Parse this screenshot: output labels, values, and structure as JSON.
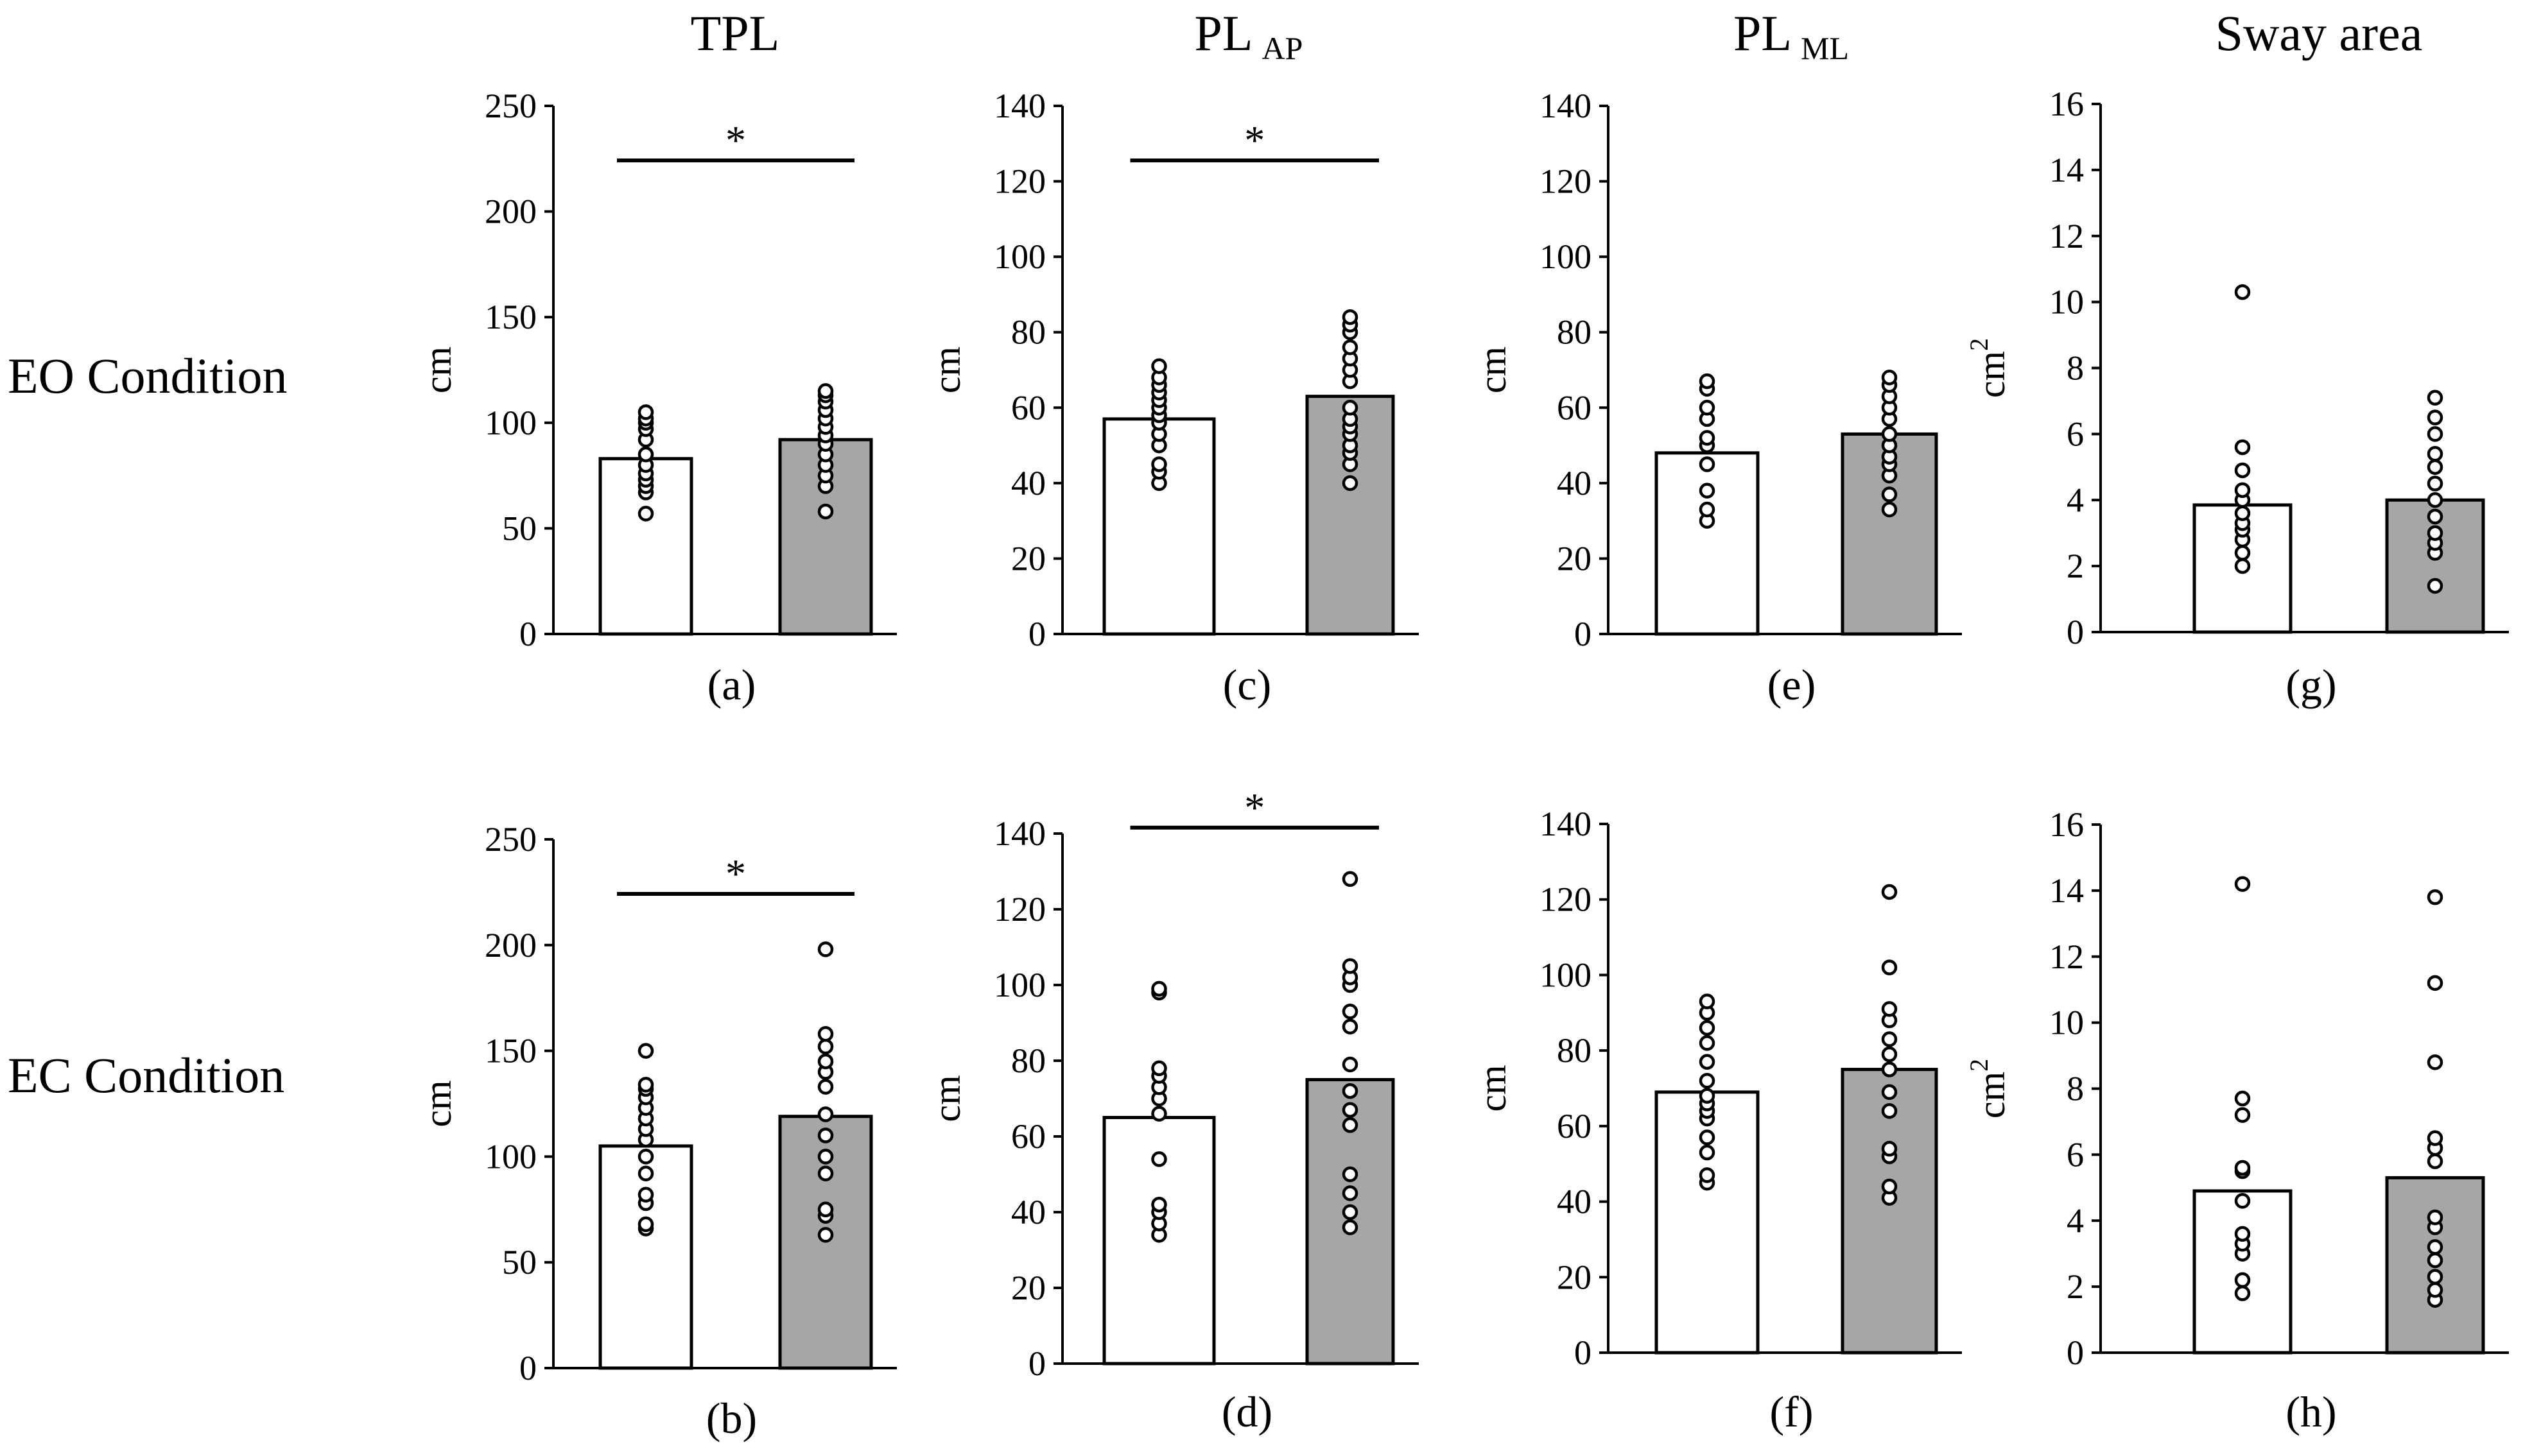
{
  "figure": {
    "column_titles": [
      {
        "main": "TPL",
        "sub": ""
      },
      {
        "main": "PL",
        "sub": "AP"
      },
      {
        "main": "PL",
        "sub": "ML"
      },
      {
        "main": "Sway area",
        "sub": ""
      }
    ],
    "row_labels": [
      "EO Condition",
      "EC Condition"
    ],
    "colors": {
      "bar_white": "#ffffff",
      "bar_gray": "#a6a6a6",
      "ink": "#000000"
    }
  },
  "chart_data": [
    {
      "type": "bar",
      "panel": "(a)",
      "row": 0,
      "col": 0,
      "ylabel": "cm",
      "ylabel_sup": "",
      "ylim": [
        0,
        250
      ],
      "yticks": [
        0,
        50,
        100,
        150,
        200,
        250
      ],
      "categories": [
        "",
        ""
      ],
      "means": [
        83,
        92
      ],
      "significance": "*",
      "points": [
        [
          57,
          67,
          70,
          73,
          76,
          80,
          85,
          92,
          97,
          100,
          102,
          105
        ],
        [
          58,
          70,
          75,
          80,
          85,
          90,
          94,
          98,
          102,
          106,
          110,
          113,
          115
        ]
      ]
    },
    {
      "type": "bar",
      "panel": "(b)",
      "row": 1,
      "col": 0,
      "ylabel": "cm",
      "ylabel_sup": "",
      "ylim": [
        0,
        250
      ],
      "yticks": [
        0,
        50,
        100,
        150,
        200,
        250
      ],
      "categories": [
        "",
        ""
      ],
      "means": [
        105,
        119
      ],
      "significance": "*",
      "points": [
        [
          66,
          68,
          78,
          82,
          92,
          100,
          108,
          113,
          118,
          123,
          128,
          132,
          134,
          150
        ],
        [
          63,
          72,
          75,
          92,
          100,
          110,
          120,
          133,
          140,
          145,
          152,
          158,
          198
        ]
      ]
    },
    {
      "type": "bar",
      "panel": "(c)",
      "row": 0,
      "col": 1,
      "ylabel": "cm",
      "ylabel_sup": "",
      "ylim": [
        0,
        140
      ],
      "yticks": [
        0,
        20,
        40,
        60,
        80,
        100,
        120,
        140
      ],
      "categories": [
        "",
        ""
      ],
      "means": [
        57,
        63
      ],
      "significance": "*",
      "points": [
        [
          40,
          43,
          45,
          50,
          53,
          56,
          58,
          60,
          62,
          64,
          66,
          68,
          71
        ],
        [
          40,
          45,
          48,
          50,
          53,
          55,
          57,
          60,
          67,
          70,
          73,
          76,
          80,
          82,
          84
        ]
      ]
    },
    {
      "type": "bar",
      "panel": "(d)",
      "row": 1,
      "col": 1,
      "ylabel": "cm",
      "ylabel_sup": "",
      "ylim": [
        0,
        140
      ],
      "yticks": [
        0,
        20,
        40,
        60,
        80,
        100,
        120,
        140
      ],
      "categories": [
        "",
        ""
      ],
      "means": [
        65,
        75
      ],
      "significance": "*",
      "points": [
        [
          34,
          37,
          40,
          42,
          54,
          66,
          70,
          73,
          76,
          78,
          98,
          99
        ],
        [
          36,
          40,
          45,
          50,
          63,
          67,
          72,
          79,
          89,
          93,
          100,
          102,
          105,
          128
        ]
      ]
    },
    {
      "type": "bar",
      "panel": "(e)",
      "row": 0,
      "col": 2,
      "ylabel": "cm",
      "ylabel_sup": "",
      "ylim": [
        0,
        140
      ],
      "yticks": [
        0,
        20,
        40,
        60,
        80,
        100,
        120,
        140
      ],
      "categories": [
        "",
        ""
      ],
      "means": [
        48,
        53
      ],
      "significance": "",
      "points": [
        [
          30,
          33,
          38,
          45,
          50,
          52,
          57,
          60,
          65,
          67
        ],
        [
          33,
          37,
          42,
          45,
          47,
          50,
          53,
          57,
          60,
          63,
          66,
          68
        ]
      ]
    },
    {
      "type": "bar",
      "panel": "(f)",
      "row": 1,
      "col": 2,
      "ylabel": "cm",
      "ylabel_sup": "",
      "ylim": [
        0,
        140
      ],
      "yticks": [
        0,
        20,
        40,
        60,
        80,
        100,
        120,
        140
      ],
      "categories": [
        "",
        ""
      ],
      "means": [
        69,
        75
      ],
      "significance": "",
      "points": [
        [
          45,
          47,
          53,
          57,
          62,
          64,
          66,
          68,
          72,
          77,
          82,
          86,
          90,
          93
        ],
        [
          41,
          44,
          52,
          54,
          64,
          69,
          75,
          79,
          83,
          88,
          91,
          102,
          122
        ]
      ]
    },
    {
      "type": "bar",
      "panel": "(g)",
      "row": 0,
      "col": 3,
      "ylabel": "cm",
      "ylabel_sup": "2",
      "ylim": [
        0,
        16
      ],
      "yticks": [
        0,
        2,
        4,
        6,
        8,
        10,
        12,
        14,
        16
      ],
      "categories": [
        "",
        ""
      ],
      "means": [
        3.85,
        4.0
      ],
      "significance": "",
      "points": [
        [
          2.0,
          2.4,
          2.8,
          3.1,
          3.3,
          3.6,
          4.0,
          4.3,
          4.9,
          5.6,
          10.3
        ],
        [
          1.4,
          2.4,
          2.7,
          3.0,
          3.5,
          4.0,
          4.5,
          5.0,
          5.4,
          6.0,
          6.5,
          7.1
        ]
      ]
    },
    {
      "type": "bar",
      "panel": "(h)",
      "row": 1,
      "col": 3,
      "ylabel": "cm",
      "ylabel_sup": "2",
      "ylim": [
        0,
        16
      ],
      "yticks": [
        0,
        2,
        4,
        6,
        8,
        10,
        12,
        14,
        16
      ],
      "categories": [
        "",
        ""
      ],
      "means": [
        4.9,
        5.3
      ],
      "significance": "",
      "points": [
        [
          1.8,
          2.2,
          3.0,
          3.3,
          3.6,
          4.6,
          5.5,
          5.6,
          7.2,
          7.7,
          14.2
        ],
        [
          1.6,
          1.9,
          2.3,
          2.8,
          3.2,
          3.8,
          4.1,
          5.8,
          6.2,
          6.5,
          8.8,
          11.2,
          13.8
        ]
      ]
    }
  ]
}
